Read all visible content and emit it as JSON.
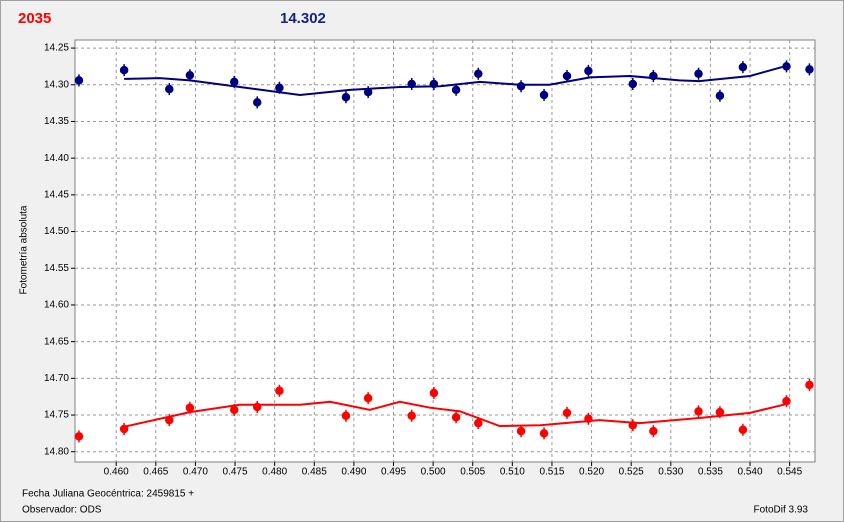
{
  "chart_data": {
    "type": "scatter",
    "title": "2035",
    "title_color": "#ff0000",
    "subtitle": "14.302",
    "subtitle_color": "#1a237e",
    "y_label": "Fotometría absoluta",
    "footer": [
      "Fecha Juliana Geocéntrica: 2459815 +",
      "Observador: ODS"
    ],
    "version": "FotoDif 3.93",
    "y_reversed": true,
    "grid": true,
    "xlim": [
      0.4548,
      0.5482
    ],
    "ylim": [
      14.239,
      14.814
    ],
    "xticks": [
      {
        "value": 0.46,
        "label": "0.460"
      },
      {
        "value": 0.465,
        "label": "0.465"
      },
      {
        "value": 0.47,
        "label": "0.470"
      },
      {
        "value": 0.475,
        "label": "0.475"
      },
      {
        "value": 0.48,
        "label": "0.480"
      },
      {
        "value": 0.485,
        "label": "0.485"
      },
      {
        "value": 0.49,
        "label": "0.490"
      },
      {
        "value": 0.495,
        "label": "0.495"
      },
      {
        "value": 0.5,
        "label": "0.500"
      },
      {
        "value": 0.505,
        "label": "0.505"
      },
      {
        "value": 0.51,
        "label": "0.510"
      },
      {
        "value": 0.515,
        "label": "0.515"
      },
      {
        "value": 0.52,
        "label": "0.520"
      },
      {
        "value": 0.525,
        "label": "0.525"
      },
      {
        "value": 0.53,
        "label": "0.530"
      },
      {
        "value": 0.535,
        "label": "0.535"
      },
      {
        "value": 0.54,
        "label": "0.540"
      },
      {
        "value": 0.545,
        "label": "0.545"
      }
    ],
    "yticks": [
      14.25,
      {
        "value": 14.3,
        "label": "14.30"
      },
      14.35,
      {
        "value": 14.4,
        "label": "14.40"
      },
      14.45,
      {
        "value": 14.5,
        "label": "14.50"
      },
      14.55,
      {
        "value": 14.6,
        "label": "14.60"
      },
      14.65,
      {
        "value": 14.7,
        "label": "14.70"
      },
      14.75,
      {
        "value": 14.8,
        "label": "14.80"
      }
    ],
    "series": [
      {
        "mode": "markers",
        "color": "#00007f",
        "x": [
          0.4553,
          0.461,
          0.4667,
          0.4693,
          0.4749,
          0.4778,
          0.4806,
          0.489,
          0.4918,
          0.4973,
          0.5001,
          0.5029,
          0.5057,
          0.5111,
          0.514,
          0.5169,
          0.5196,
          0.5252,
          0.5278,
          0.5335,
          0.5362,
          0.5391,
          0.5446,
          0.5475
        ],
        "values": [
          14.294,
          14.28,
          14.306,
          14.287,
          14.296,
          14.324,
          14.304,
          14.317,
          14.31,
          14.299,
          14.299,
          14.307,
          14.285,
          14.302,
          14.314,
          14.288,
          14.281,
          14.299,
          14.288,
          14.285,
          14.315,
          14.276,
          14.275,
          14.279
        ]
      },
      {
        "mode": "markers",
        "color": "#ff0000",
        "x": [
          0.4553,
          0.461,
          0.4667,
          0.4693,
          0.4749,
          0.4778,
          0.4806,
          0.489,
          0.4918,
          0.4973,
          0.5001,
          0.5029,
          0.5057,
          0.5111,
          0.514,
          0.5169,
          0.5196,
          0.5252,
          0.5278,
          0.5335,
          0.5362,
          0.5391,
          0.5446,
          0.5475
        ],
        "values": [
          14.779,
          14.769,
          14.757,
          14.74,
          14.743,
          14.739,
          14.717,
          14.751,
          14.727,
          14.751,
          14.72,
          14.753,
          14.761,
          14.772,
          14.775,
          14.747,
          14.755,
          14.764,
          14.772,
          14.745,
          14.746,
          14.77,
          14.731,
          14.709
        ]
      },
      {
        "mode": "line",
        "color": "#00007f",
        "x": [
          0.461,
          0.4655,
          0.4693,
          0.4756,
          0.4832,
          0.4895,
          0.4958,
          0.5009,
          0.5059,
          0.5109,
          0.5147,
          0.5198,
          0.5248,
          0.5311,
          0.5336,
          0.54,
          0.545
        ],
        "values": [
          14.292,
          14.291,
          14.294,
          14.303,
          14.314,
          14.307,
          14.303,
          14.302,
          14.296,
          14.3,
          14.3,
          14.29,
          14.288,
          14.294,
          14.295,
          14.288,
          14.273
        ]
      },
      {
        "mode": "line",
        "color": "#ff0000",
        "x": [
          0.461,
          0.4693,
          0.4756,
          0.4832,
          0.487,
          0.492,
          0.4958,
          0.4996,
          0.5034,
          0.5084,
          0.5135,
          0.521,
          0.5261,
          0.5336,
          0.54,
          0.545
        ],
        "values": [
          14.766,
          14.746,
          14.736,
          14.736,
          14.732,
          14.743,
          14.732,
          14.74,
          14.745,
          14.765,
          14.764,
          14.757,
          14.761,
          14.754,
          14.747,
          14.734
        ]
      }
    ]
  }
}
